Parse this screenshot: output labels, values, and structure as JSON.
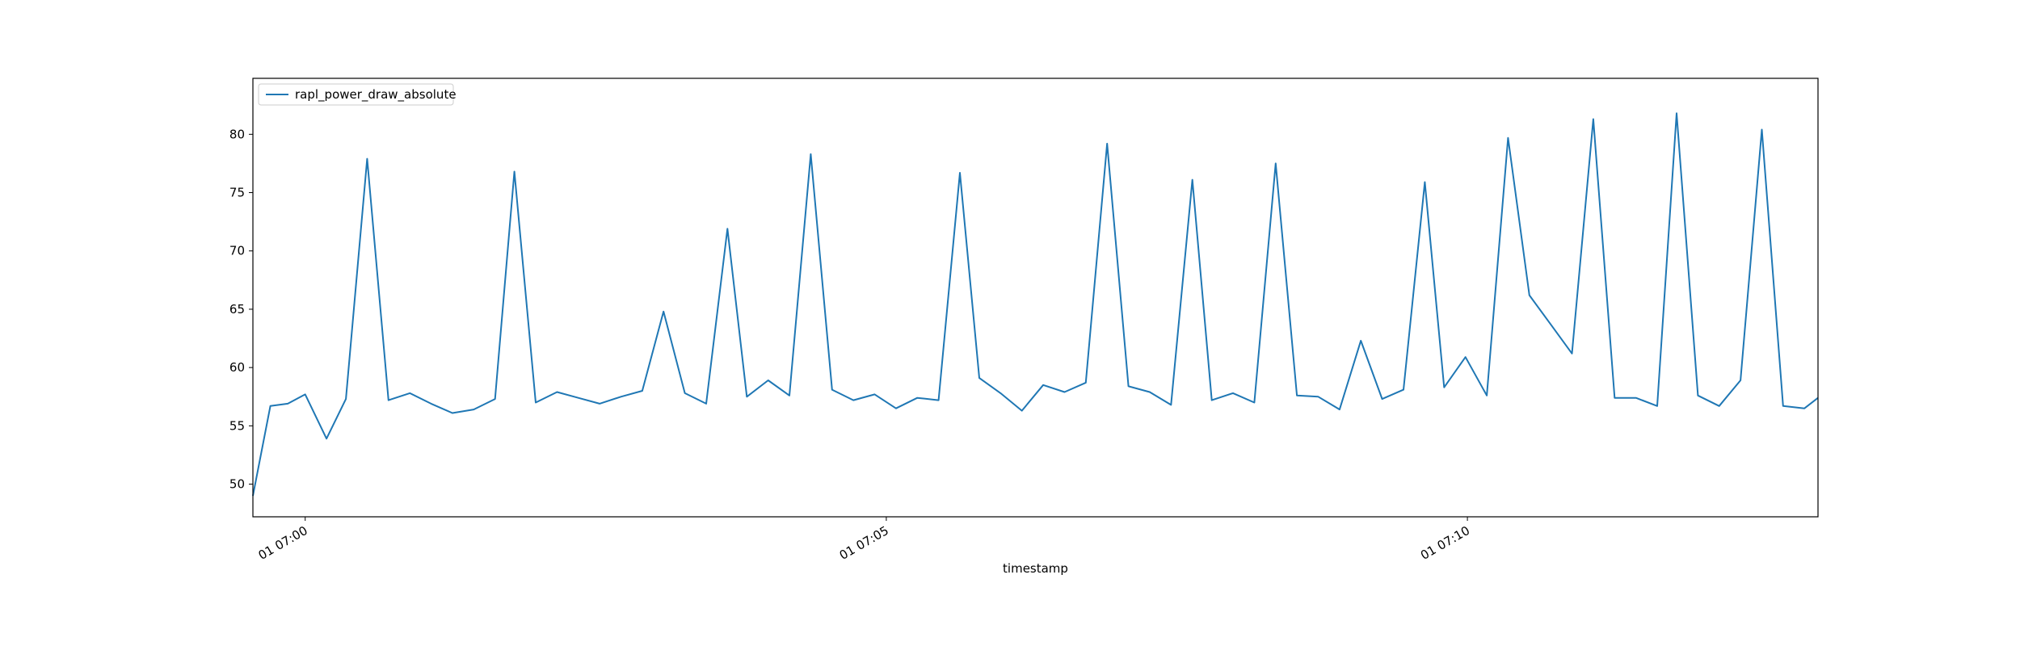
{
  "chart_data": {
    "type": "line",
    "title": "",
    "xlabel": "timestamp",
    "ylabel": "",
    "x_ticks": [
      "01 07:00",
      "01 07:05",
      "01 07:10"
    ],
    "y_ticks": [
      50,
      55,
      60,
      65,
      70,
      75,
      80
    ],
    "ylim": [
      47.2,
      84.8
    ],
    "xlim": [
      "01 06:59:33",
      "01 07:13:01"
    ],
    "grid": false,
    "legend_position": "top-left",
    "colors": {
      "series": "#1f77b4"
    },
    "series": [
      {
        "name": "rapl_power_draw_absolute",
        "x": [
          "01 06:59:33",
          "01 06:59:42",
          "01 06:59:51",
          "01 07:00:00",
          "01 07:00:11",
          "01 07:00:21",
          "01 07:00:32",
          "01 07:00:43",
          "01 07:00:54",
          "01 07:01:05",
          "01 07:01:16",
          "01 07:01:27",
          "01 07:01:38",
          "01 07:01:48",
          "01 07:01:59",
          "01 07:02:10",
          "01 07:02:21",
          "01 07:02:32",
          "01 07:02:43",
          "01 07:02:54",
          "01 07:03:05",
          "01 07:03:16",
          "01 07:03:27",
          "01 07:03:38",
          "01 07:03:48",
          "01 07:03:59",
          "01 07:04:10",
          "01 07:04:21",
          "01 07:04:32",
          "01 07:04:43",
          "01 07:04:54",
          "01 07:05:05",
          "01 07:05:16",
          "01 07:05:27",
          "01 07:05:38",
          "01 07:05:48",
          "01 07:05:59",
          "01 07:06:10",
          "01 07:06:21",
          "01 07:06:32",
          "01 07:06:43",
          "01 07:06:54",
          "01 07:07:05",
          "01 07:07:16",
          "01 07:07:27",
          "01 07:07:38",
          "01 07:07:48",
          "01 07:07:59",
          "01 07:08:10",
          "01 07:08:21",
          "01 07:08:32",
          "01 07:08:43",
          "01 07:08:54",
          "01 07:09:05",
          "01 07:09:16",
          "01 07:09:27",
          "01 07:09:38",
          "01 07:09:48",
          "01 07:09:59",
          "01 07:10:10",
          "01 07:10:21",
          "01 07:10:32",
          "01 07:10:43",
          "01 07:10:54",
          "01 07:11:05",
          "01 07:11:16",
          "01 07:11:27",
          "01 07:11:38",
          "01 07:11:48",
          "01 07:11:59",
          "01 07:12:10",
          "01 07:12:21",
          "01 07:12:32",
          "01 07:12:43",
          "01 07:12:54",
          "01 07:13:01"
        ],
        "values": [
          49.0,
          56.7,
          56.9,
          57.7,
          53.9,
          57.3,
          77.9,
          57.2,
          57.8,
          56.9,
          56.1,
          56.4,
          57.3,
          76.8,
          57.0,
          57.9,
          57.4,
          56.9,
          57.5,
          58.0,
          64.8,
          57.8,
          56.9,
          71.9,
          57.5,
          58.9,
          57.6,
          78.3,
          58.1,
          57.2,
          57.7,
          56.5,
          57.4,
          57.2,
          76.7,
          59.1,
          57.8,
          56.3,
          58.5,
          57.9,
          58.7,
          79.2,
          58.4,
          57.9,
          56.8,
          76.1,
          57.2,
          57.8,
          57.0,
          77.5,
          57.6,
          57.5,
          56.4,
          62.3,
          57.3,
          58.1,
          75.9,
          58.3,
          60.9,
          57.6,
          79.7,
          66.2,
          63.7,
          61.2,
          81.3,
          57.4,
          57.4,
          56.7,
          81.8,
          57.6,
          56.7,
          58.9,
          80.4,
          56.7,
          56.5,
          57.4
        ]
      }
    ]
  }
}
